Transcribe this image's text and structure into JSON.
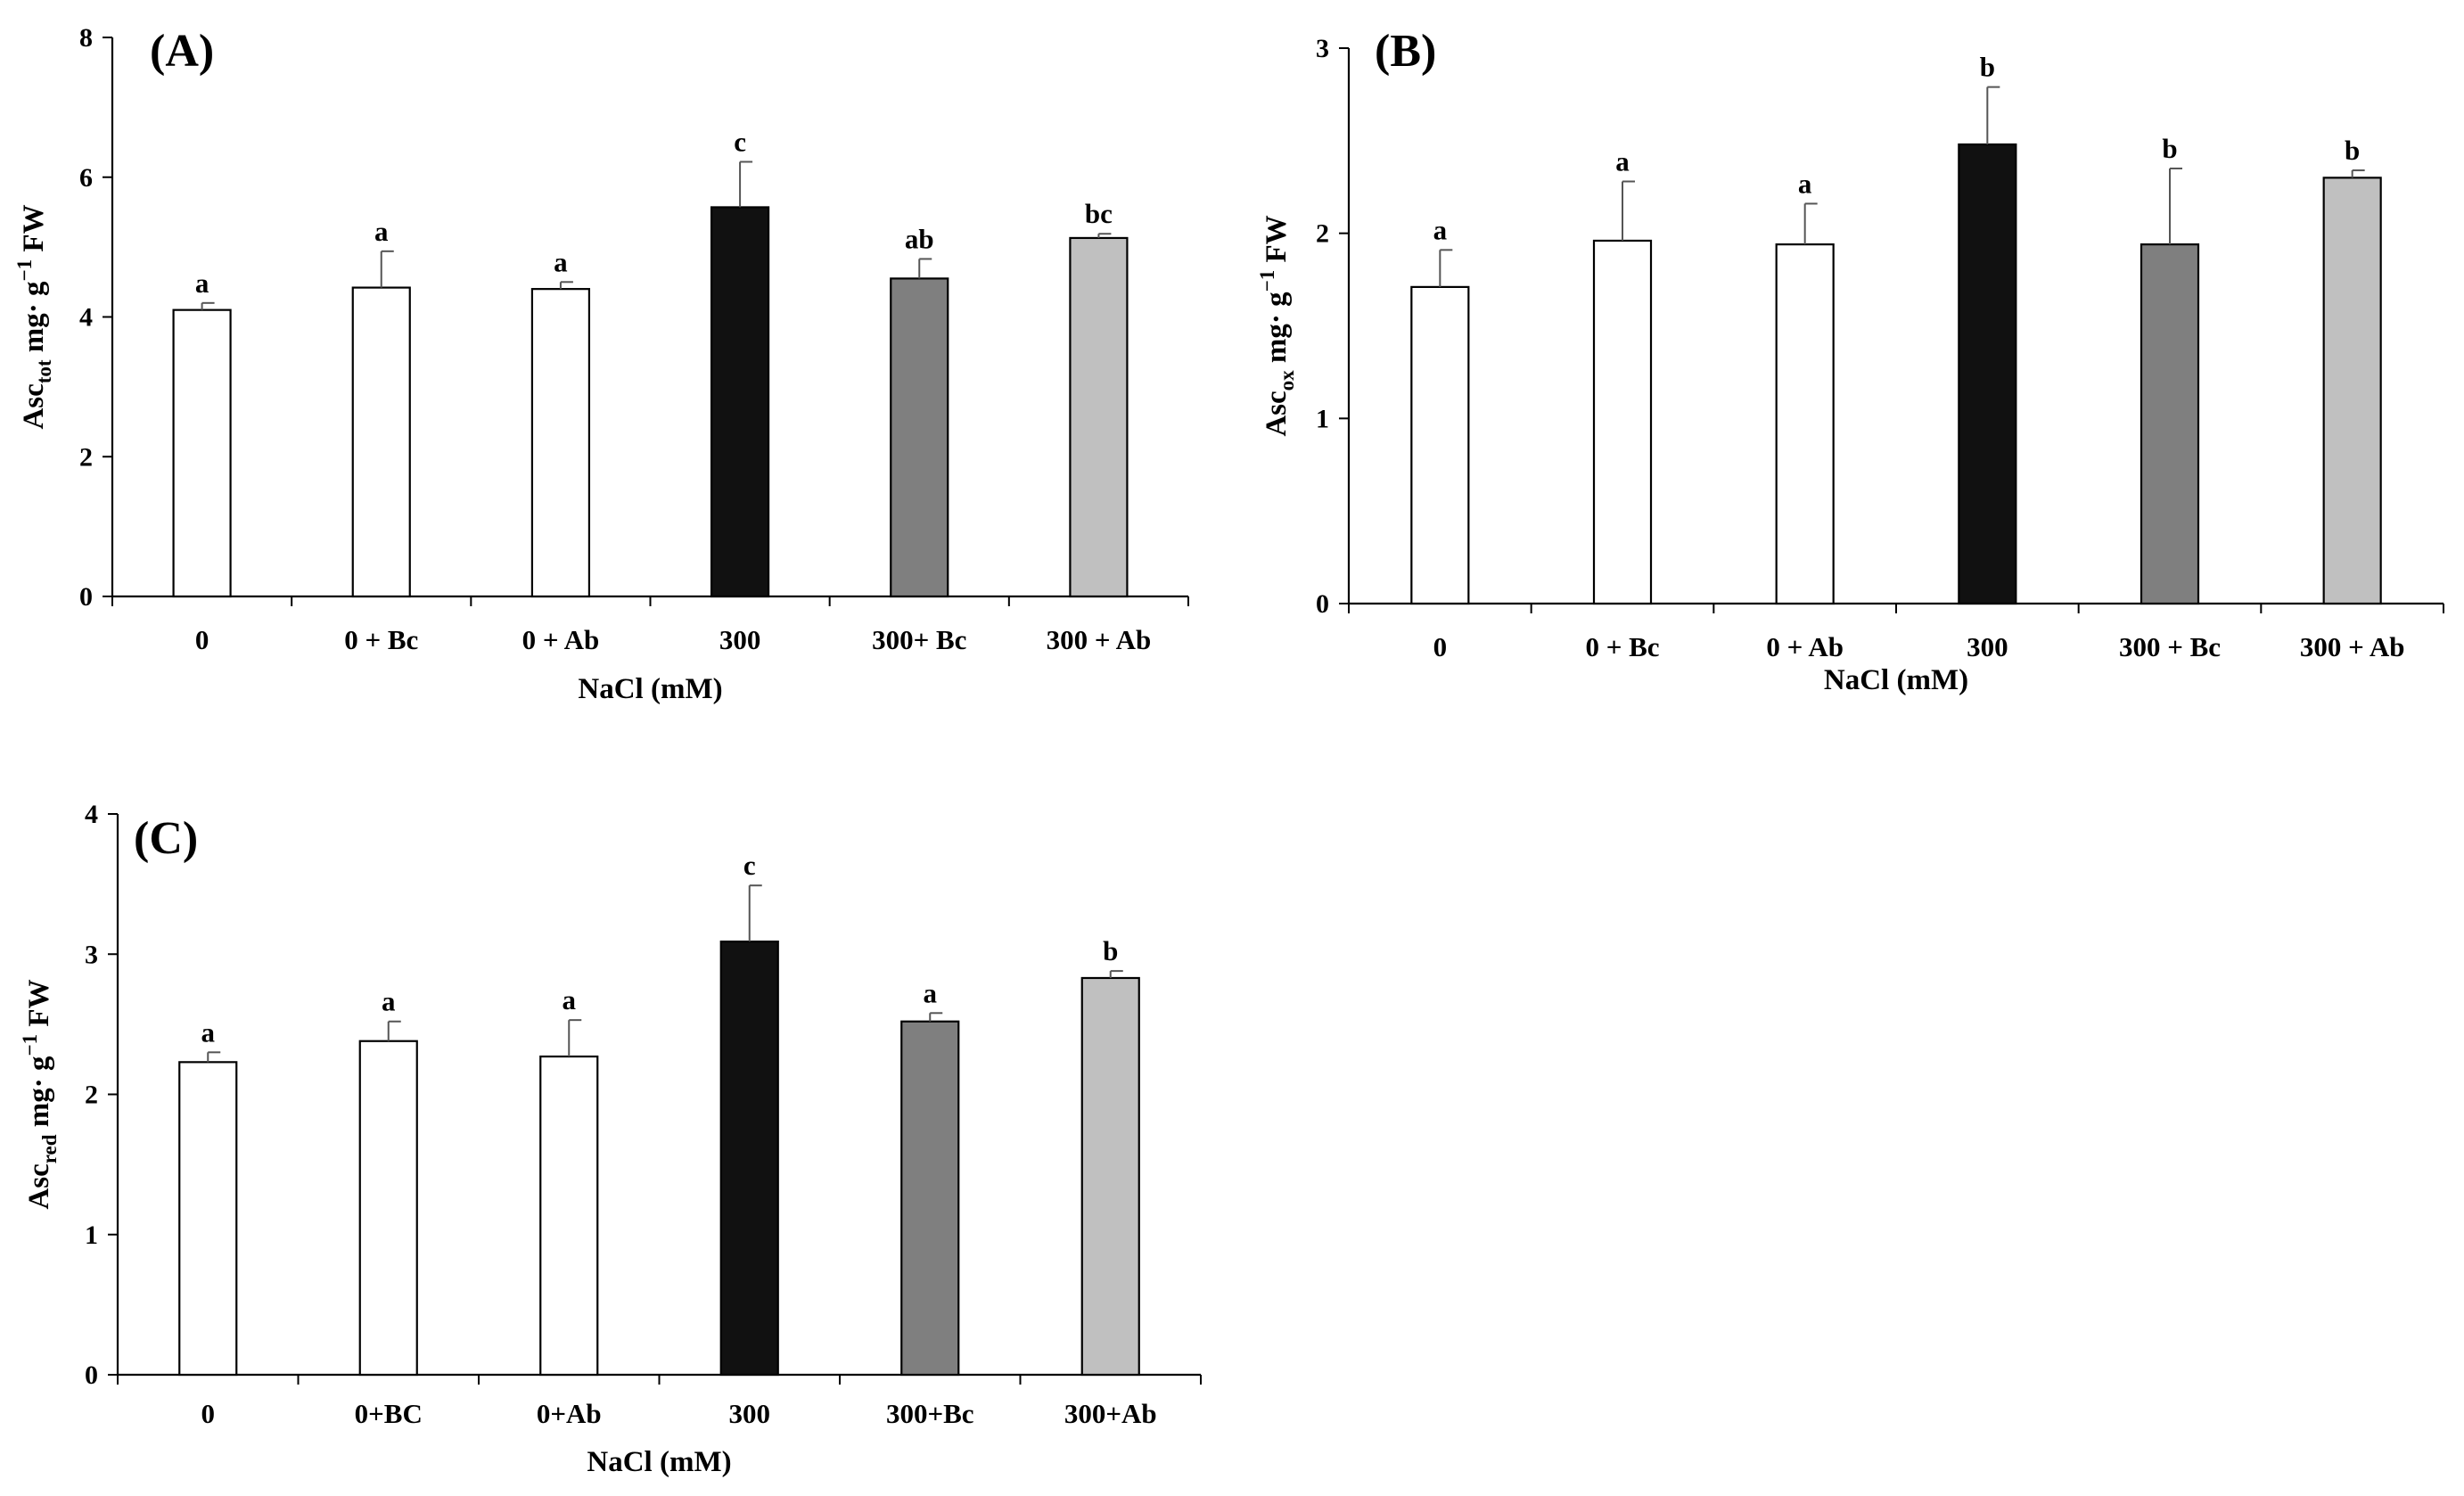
{
  "chart_data": [
    {
      "type": "bar",
      "panel": "(A)",
      "ylabel": {
        "base": "Asc",
        "sub": "tot",
        "unit": " mg· g",
        "sup": "−1",
        "tail": " FW"
      },
      "xlabel": "NaCl (mM)",
      "categories": [
        "0",
        "0 + Bc",
        "0 + Ab",
        "300",
        "300+ Bc",
        "300 + Ab"
      ],
      "values": [
        4.1,
        4.42,
        4.4,
        5.57,
        4.55,
        5.13
      ],
      "errors": [
        0.1,
        0.52,
        0.1,
        0.65,
        0.28,
        0.06
      ],
      "letters": [
        "a",
        "a",
        "a",
        "c",
        "ab",
        "bc"
      ],
      "colors": [
        "#ffffff",
        "#ffffff",
        "#ffffff",
        "#111111",
        "#7f7f7f",
        "#c0c0c0"
      ],
      "ylim": [
        0,
        8
      ],
      "yticks": [
        0,
        2,
        4,
        6,
        8
      ]
    },
    {
      "type": "bar",
      "panel": "(B)",
      "ylabel": {
        "base": "Asc",
        "sub": "ox",
        "unit": " mg· g",
        "sup": "−1",
        "tail": " FW"
      },
      "xlabel": "NaCl (mM)",
      "categories": [
        "0",
        "0 + Bc",
        "0 + Ab",
        "300",
        "300 + Bc",
        "300 + Ab"
      ],
      "values": [
        1.71,
        1.96,
        1.94,
        2.48,
        1.94,
        2.3
      ],
      "errors": [
        0.2,
        0.32,
        0.22,
        0.31,
        0.41,
        0.04
      ],
      "letters": [
        "a",
        "a",
        "a",
        "b",
        "b",
        "b"
      ],
      "colors": [
        "#ffffff",
        "#ffffff",
        "#ffffff",
        "#111111",
        "#7f7f7f",
        "#c0c0c0"
      ],
      "ylim": [
        0,
        3
      ],
      "yticks": [
        0,
        1,
        2,
        3
      ]
    },
    {
      "type": "bar",
      "panel": "(C)",
      "ylabel": {
        "base": "Asc",
        "sub": "red",
        "unit": " mg· g",
        "sup": "−1",
        "tail": " FW"
      },
      "xlabel": "NaCl (mM)",
      "categories": [
        "0",
        "0+BC",
        "0+Ab",
        "300",
        "300+Bc",
        "300+Ab"
      ],
      "values": [
        2.23,
        2.38,
        2.27,
        3.09,
        2.52,
        2.83
      ],
      "errors": [
        0.07,
        0.14,
        0.26,
        0.4,
        0.06,
        0.05
      ],
      "letters": [
        "a",
        "a",
        "a",
        "c",
        "a",
        "b"
      ],
      "colors": [
        "#ffffff",
        "#ffffff",
        "#ffffff",
        "#111111",
        "#7f7f7f",
        "#c0c0c0"
      ],
      "ylim": [
        0,
        4
      ],
      "yticks": [
        0,
        1,
        2,
        3,
        4
      ]
    }
  ]
}
